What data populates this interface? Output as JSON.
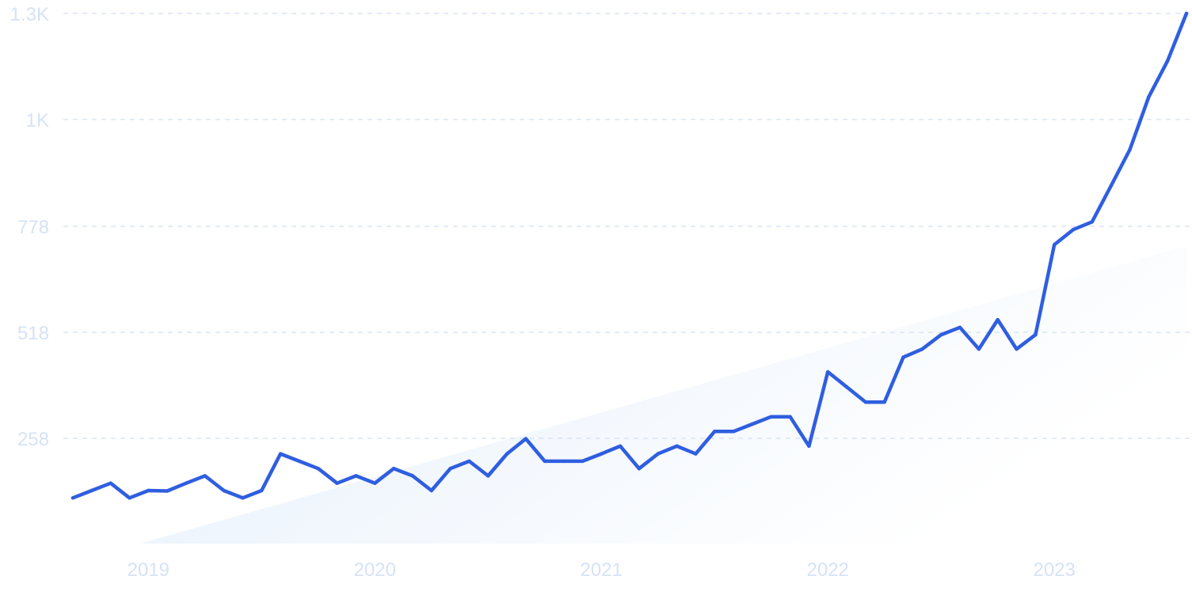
{
  "colors": {
    "line": "#2f5ee0",
    "tick_text": "#d6e2f7",
    "grid": "#d3dff4",
    "trend_fill_start": "#e3eefb",
    "trend_fill_end": "#ffffff",
    "background": "#ffffff"
  },
  "chart_data": {
    "type": "line",
    "title": "",
    "xlabel": "",
    "ylabel": "",
    "grid": true,
    "legend": "none",
    "yticks": [
      {
        "value": 1300,
        "label": "1.3K"
      },
      {
        "value": 1040,
        "label": "1K"
      },
      {
        "value": 778,
        "label": "778"
      },
      {
        "value": 518,
        "label": "518"
      },
      {
        "value": 258,
        "label": "258"
      }
    ],
    "ylim": [
      0,
      1300
    ],
    "xlim": [
      "2018-09",
      "2023-08"
    ],
    "xticks": [
      {
        "value": "2019-01",
        "label": "2019"
      },
      {
        "value": "2020-01",
        "label": "2020"
      },
      {
        "value": "2021-01",
        "label": "2021"
      },
      {
        "value": "2022-01",
        "label": "2022"
      },
      {
        "value": "2023-01",
        "label": "2023"
      }
    ],
    "series": [
      {
        "x": [
          "2018-09",
          "2018-10",
          "2018-11",
          "2018-12",
          "2019-01",
          "2019-02",
          "2019-03",
          "2019-04",
          "2019-05",
          "2019-06",
          "2019-07",
          "2019-08",
          "2019-09",
          "2019-10",
          "2019-11",
          "2019-12",
          "2020-01",
          "2020-02",
          "2020-03",
          "2020-04",
          "2020-05",
          "2020-06",
          "2020-07",
          "2020-08",
          "2020-09",
          "2020-10",
          "2020-11",
          "2020-12",
          "2021-01",
          "2021-02",
          "2021-03",
          "2021-04",
          "2021-05",
          "2021-06",
          "2021-07",
          "2021-08",
          "2021-09",
          "2021-10",
          "2021-11",
          "2021-12",
          "2022-01",
          "2022-02",
          "2022-03",
          "2022-04",
          "2022-05",
          "2022-06",
          "2022-07",
          "2022-08",
          "2022-09",
          "2022-10",
          "2022-11",
          "2022-12",
          "2023-01",
          "2023-02",
          "2023-03",
          "2023-04",
          "2023-05",
          "2023-06",
          "2023-07",
          "2023-08"
        ],
        "values": [
          112,
          130,
          148,
          112,
          130,
          129,
          148,
          166,
          130,
          112,
          130,
          220,
          202,
          184,
          148,
          166,
          148,
          184,
          166,
          130,
          184,
          202,
          166,
          220,
          257,
          202,
          202,
          202,
          220,
          239,
          184,
          220,
          239,
          220,
          275,
          275,
          293,
          311,
          311,
          239,
          421,
          384,
          347,
          347,
          457,
          477,
          512,
          530,
          477,
          549,
          477,
          512,
          733,
          770,
          789,
          877,
          966,
          1095,
          1184,
          1300
        ]
      }
    ],
    "trend": {
      "start": {
        "x": "2018-09",
        "value": 0
      },
      "end": {
        "x": "2023-08",
        "value": 730
      }
    }
  }
}
